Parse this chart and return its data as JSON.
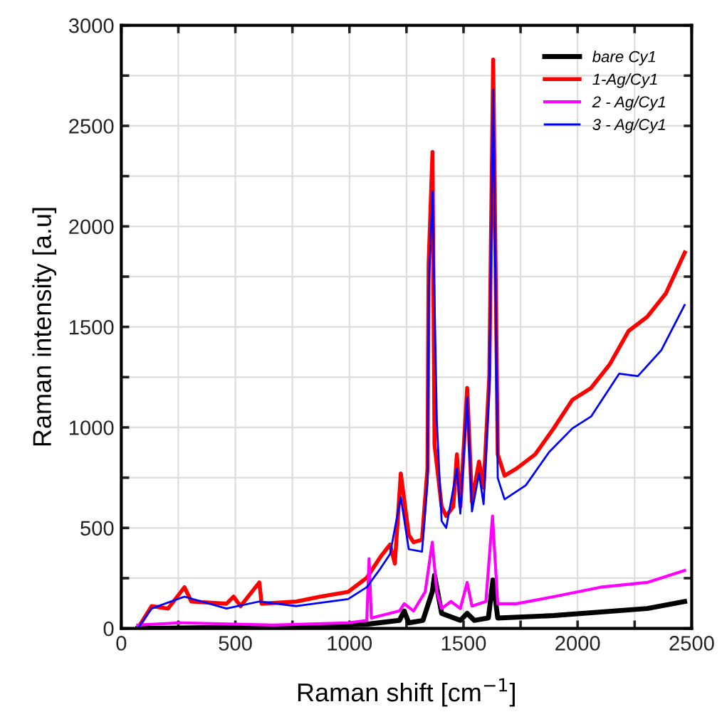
{
  "chart_data": {
    "type": "line",
    "xlabel": "Raman shift [cm$^{−1}$]",
    "ylabel": "Raman intensity [a.u]",
    "xlim": [
      0,
      2500
    ],
    "ylim": [
      0,
      3000
    ],
    "xticks": [
      0,
      {
        "value": 250,
        "label": null
      },
      500,
      {
        "value": 750,
        "label": null
      },
      1000,
      {
        "value": 1250,
        "label": null
      },
      1500,
      {
        "value": 1750,
        "label": null
      },
      2000,
      {
        "value": 2250,
        "label": null
      },
      2500
    ],
    "yticks": [
      0,
      {
        "value": 250,
        "label": null
      },
      500,
      {
        "value": 750,
        "label": null
      },
      1000,
      {
        "value": 1250,
        "label": null
      },
      1500,
      {
        "value": 1750,
        "label": null
      },
      2000,
      {
        "value": 2250,
        "label": null
      },
      2500,
      {
        "value": 2750,
        "label": null
      },
      3000
    ],
    "grid": true,
    "legend": "top right",
    "marker": "none",
    "line_style": "solid",
    "series": [
      {
        "name": "bare Cy1",
        "color": "#000000",
        "x": [
          72,
          461,
          871,
          1076,
          1219,
          1240,
          1260,
          1322,
          1363,
          1373,
          1404,
          1486,
          1516,
          1547,
          1609,
          1629,
          1650,
          1895,
          2305,
          2469
        ],
        "values": [
          0,
          5,
          12,
          21,
          40,
          87,
          28,
          40,
          182,
          264,
          75,
          40,
          75,
          40,
          52,
          241,
          52,
          64,
          99,
          134
        ]
      },
      {
        "name": "1-Ag/Cy1",
        "color": "#ff0000",
        "x": [
          72,
          133,
          205,
          277,
          307,
          461,
          492,
          523,
          605,
          615,
          768,
          871,
          994,
          1076,
          1137,
          1178,
          1199,
          1225,
          1260,
          1281,
          1318,
          1342,
          1347,
          1364,
          1373,
          1404,
          1424,
          1455,
          1471,
          1486,
          1516,
          1537,
          1568,
          1588,
          1613,
          1630,
          1650,
          1680,
          1732,
          1814,
          1895,
          1977,
          2059,
          2141,
          2223,
          2305,
          2387,
          2470
        ],
        "values": [
          0,
          111,
          99,
          205,
          134,
          123,
          158,
          111,
          229,
          123,
          134,
          158,
          182,
          252,
          358,
          417,
          323,
          771,
          465,
          429,
          441,
          794,
          1810,
          2370,
          913,
          606,
          559,
          606,
          866,
          606,
          1196,
          630,
          830,
          700,
          1255,
          2830,
          866,
          760,
          795,
          866,
          995,
          1137,
          1196,
          1314,
          1479,
          1550,
          1667,
          1870
        ]
      },
      {
        "name": "2 - Ag/Cy1",
        "color": "#ff00ff",
        "x": [
          72,
          256,
          666,
          994,
          1076,
          1086,
          1096,
          1219,
          1240,
          1281,
          1332,
          1363,
          1383,
          1404,
          1445,
          1486,
          1516,
          1537,
          1598,
          1627,
          1650,
          1732,
          1895,
          2100,
          2305,
          2469
        ],
        "values": [
          17,
          28,
          17,
          28,
          40,
          347,
          52,
          87,
          123,
          87,
          182,
          429,
          182,
          99,
          134,
          99,
          229,
          111,
          134,
          559,
          123,
          123,
          158,
          205,
          229,
          288
        ]
      },
      {
        "name": "3 - Ag/Cy1",
        "color": "#0000ff",
        "x": [
          72,
          133,
          277,
          461,
          605,
          768,
          994,
          1076,
          1137,
          1178,
          1225,
          1260,
          1318,
          1342,
          1348,
          1364,
          1383,
          1404,
          1424,
          1471,
          1486,
          1516,
          1537,
          1568,
          1588,
          1613,
          1630,
          1650,
          1680,
          1773,
          1875,
          1977,
          2059,
          2182,
          2264,
          2367,
          2469
        ],
        "values": [
          0,
          99,
          158,
          99,
          134,
          111,
          146,
          205,
          300,
          370,
          653,
          394,
          382,
          724,
          1700,
          2172,
          1031,
          535,
          500,
          795,
          571,
          1149,
          582,
          771,
          618,
          1196,
          2680,
          748,
          642,
          712,
          877,
          995,
          1054,
          1267,
          1255,
          1384,
          1609
        ]
      }
    ]
  }
}
